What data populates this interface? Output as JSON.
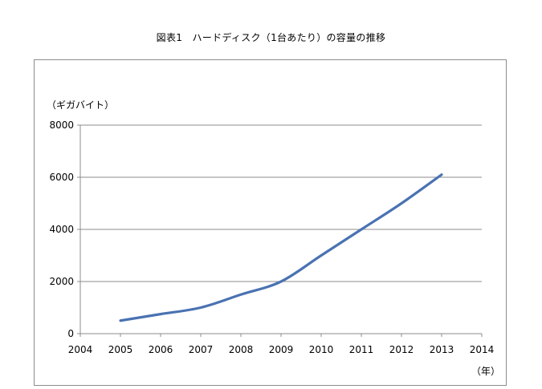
{
  "chart_data": {
    "type": "line",
    "title": "図表1　ハードディスク（1台あたり）の容量の推移",
    "ylabel": "（ギガバイト）",
    "xlabel": "（年）",
    "xlim": [
      2004,
      2014
    ],
    "ylim": [
      0,
      8000
    ],
    "xticks": [
      2004,
      2005,
      2006,
      2007,
      2008,
      2009,
      2010,
      2011,
      2012,
      2013,
      2014
    ],
    "yticks": [
      0,
      2000,
      4000,
      6000,
      8000
    ],
    "grid": true,
    "legend": "none",
    "series": [
      {
        "color": "#4a72b2",
        "x": [
          2005,
          2006,
          2007,
          2008,
          2009,
          2010,
          2011,
          2012,
          2013
        ],
        "y": [
          500,
          750,
          1000,
          1500,
          2000,
          3000,
          4000,
          5000,
          6100
        ]
      }
    ]
  }
}
